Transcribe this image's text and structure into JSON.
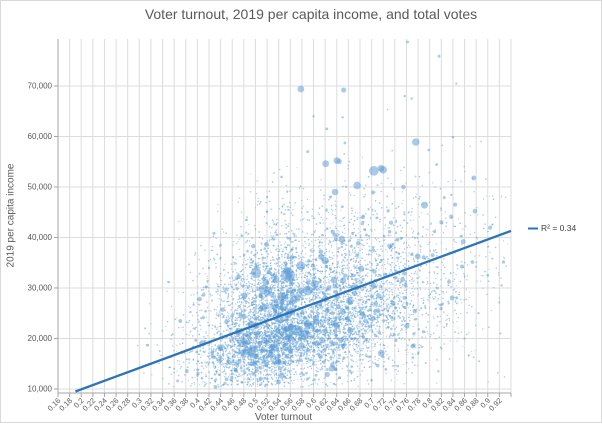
{
  "chart_data": {
    "type": "scatter",
    "title": "Voter turnout, 2019 per capita income, and total votes",
    "xlabel": "Voter turnout",
    "ylabel": "2019 per capita income",
    "xlim": [
      0.16,
      0.94
    ],
    "ylim": [
      9200,
      79300
    ],
    "grid": true,
    "x_ticks": {
      "values": [
        0.16,
        0.18,
        0.2,
        0.22,
        0.24,
        0.26,
        0.28,
        0.3,
        0.32,
        0.34,
        0.36,
        0.38,
        0.4,
        0.42,
        0.44,
        0.46,
        0.48,
        0.5,
        0.52,
        0.54,
        0.56,
        0.58,
        0.6,
        0.62,
        0.64,
        0.66,
        0.68,
        0.7,
        0.72,
        0.74,
        0.76,
        0.78,
        0.8,
        0.82,
        0.84,
        0.86,
        0.88,
        0.9,
        0.92
      ],
      "labels": [
        "0.16",
        "0.18",
        "0.2",
        "0.22",
        "0.24",
        "0.26",
        "0.28",
        "0.3",
        "0.32",
        "0.34",
        "0.36",
        "0.38",
        "0.4",
        "0.42",
        "0.44",
        "0.46",
        "0.48",
        "0.5",
        "0.52",
        "0.54",
        "0.56",
        "0.58",
        "0.6",
        "0.62",
        "0.64",
        "0.66",
        "0.68",
        "0.7",
        "0.72",
        "0.74",
        "0.76",
        "0.78",
        "0.8",
        "0.82",
        "0.84",
        "0.86",
        "0.88",
        "0.9",
        "0.92"
      ],
      "extra_gridlines": [
        0.94
      ]
    },
    "y_ticks": {
      "values": [
        10000,
        20000,
        30000,
        40000,
        50000,
        60000,
        70000
      ],
      "labels": [
        "10,000",
        "20,000",
        "30,000",
        "40,000",
        "50,000",
        "60,000",
        "70,000"
      ]
    },
    "trendline": {
      "x1": 0.19,
      "y1": 9500,
      "x2": 0.94,
      "y2": 41300,
      "r2": 0.34,
      "r2_label": "R² = 0.34"
    },
    "colors": {
      "point": "#5b9bd5",
      "point_opacity": 0.52,
      "trendline": "#2e75b6",
      "grid": "#dcdcdc",
      "axis": "#a6a6a6",
      "text": "#595959"
    },
    "cloud": {
      "seed": 7,
      "n": 6700,
      "x_mean": 0.565,
      "x_sd_left": 0.078,
      "x_sd_right": 0.135,
      "x_clip": [
        0.295,
        0.935
      ],
      "y_base_at": 0.55,
      "y_base": 22500,
      "y_slope": 33000,
      "y_sd_down": 5400,
      "y_sd_up": 9800,
      "y_sd_down_growth": 1.2,
      "y_sd_up_growth": 0.5,
      "y_clip": [
        10300,
        79000
      ],
      "r_buckets": [
        {
          "p": 0.87,
          "min": 0.55,
          "max": 0.9
        },
        {
          "p": 0.955,
          "min": 0.9,
          "max": 1.5
        },
        {
          "p": 0.992,
          "min": 1.5,
          "max": 2.4
        },
        {
          "p": 1.0,
          "min": 2.4,
          "max": 3.5
        }
      ]
    },
    "cloud2": {
      "seed": 99,
      "n": 380,
      "x_mean": 0.615,
      "x_sd": 0.13,
      "x_clip": [
        0.3,
        0.935
      ],
      "y_min": 10800,
      "y_span": 26000,
      "y_pow": 1.0,
      "r_min": 0.5,
      "r_max": 1.0
    },
    "large_points": [
      [
        0.501,
        33000,
        5.2
      ],
      [
        0.556,
        32500,
        7.0
      ],
      [
        0.578,
        34400,
        4.6
      ],
      [
        0.62,
        35400,
        3.6
      ],
      [
        0.613,
        36200,
        3.0
      ],
      [
        0.518,
        31100,
        3.4
      ],
      [
        0.514,
        29700,
        4.8
      ],
      [
        0.545,
        28300,
        4.4
      ],
      [
        0.571,
        21600,
        5.4
      ],
      [
        0.585,
        20700,
        4.8
      ],
      [
        0.602,
        30800,
        4.0
      ],
      [
        0.566,
        27600,
        4.0
      ],
      [
        0.59,
        29500,
        5.0
      ],
      [
        0.556,
        24800,
        3.8
      ],
      [
        0.604,
        24000,
        3.4
      ],
      [
        0.533,
        26200,
        3.2
      ],
      [
        0.62,
        28000,
        3.0
      ],
      [
        0.651,
        31500,
        3.2
      ],
      [
        0.664,
        27400,
        3.0
      ],
      [
        0.682,
        33800,
        3.0
      ],
      [
        0.703,
        30500,
        2.8
      ],
      [
        0.64,
        22500,
        3.0
      ],
      [
        0.615,
        19600,
        3.0
      ],
      [
        0.56,
        17500,
        2.6
      ],
      [
        0.5,
        22500,
        3.0
      ],
      [
        0.48,
        24300,
        2.8
      ],
      [
        0.47,
        21000,
        2.4
      ],
      [
        0.52,
        19300,
        2.6
      ]
    ],
    "outlier_points": [
      [
        0.578,
        69400,
        3.4
      ],
      [
        0.652,
        69200,
        2.6
      ],
      [
        0.762,
        78700,
        1.4
      ],
      [
        0.816,
        75900,
        1.4
      ],
      [
        0.757,
        68000,
        1.2
      ],
      [
        0.769,
        67500,
        1.2
      ],
      [
        0.84,
        59900,
        1.3
      ],
      [
        0.654,
        58700,
        1.4
      ],
      [
        0.776,
        58900,
        3.8
      ],
      [
        0.704,
        53200,
        4.8
      ],
      [
        0.72,
        53400,
        3.8
      ],
      [
        0.716,
        53700,
        3.4
      ],
      [
        0.621,
        54600,
        3.4
      ],
      [
        0.675,
        50300,
        3.8
      ],
      [
        0.637,
        49000,
        3.3
      ],
      [
        0.876,
        51800,
        2.4
      ],
      [
        0.844,
        46500,
        2.0
      ],
      [
        0.82,
        43000,
        2.0
      ],
      [
        0.9,
        32500,
        1.4
      ],
      [
        0.924,
        30500,
        1.2
      ],
      [
        0.884,
        25000,
        1.2
      ],
      [
        0.922,
        21000,
        1.0
      ],
      [
        0.885,
        15500,
        1.0
      ],
      [
        0.815,
        13500,
        1.2
      ],
      [
        0.6,
        64000,
        1.2
      ],
      [
        0.623,
        61500,
        1.4
      ],
      [
        0.65,
        63800,
        1.2
      ],
      [
        0.59,
        57000,
        1.5
      ],
      [
        0.545,
        52000,
        1.3
      ],
      [
        0.52,
        48000,
        1.2
      ],
      [
        0.485,
        43500,
        1.2
      ],
      [
        0.44,
        38500,
        1.3
      ],
      [
        0.42,
        34000,
        1.2
      ],
      [
        0.35,
        31200,
        1.2
      ],
      [
        0.31,
        22000,
        1.0
      ],
      [
        0.335,
        17500,
        1.0
      ],
      [
        0.36,
        14000,
        1.0
      ],
      [
        0.415,
        12500,
        1.0
      ],
      [
        0.46,
        11500,
        1.0
      ],
      [
        0.52,
        10800,
        1.2
      ],
      [
        0.7,
        11800,
        1.2
      ],
      [
        0.745,
        14500,
        1.2
      ],
      [
        0.78,
        17000,
        1.2
      ],
      [
        0.86,
        20000,
        1.1
      ],
      [
        0.665,
        13200,
        1.1
      ],
      [
        0.635,
        11000,
        1.0
      ],
      [
        0.59,
        12000,
        1.5
      ]
    ]
  }
}
